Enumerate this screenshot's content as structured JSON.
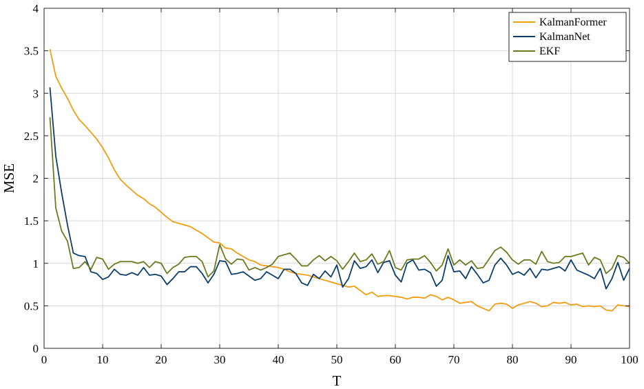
{
  "chart_data": {
    "type": "line",
    "xlabel": "T",
    "ylabel": "MSE",
    "xlim": [
      0,
      100
    ],
    "ylim": [
      0,
      4
    ],
    "xticks": [
      0,
      10,
      20,
      30,
      40,
      50,
      60,
      70,
      80,
      90,
      100
    ],
    "yticks": [
      0,
      0.5,
      1,
      1.5,
      2,
      2.5,
      3,
      3.5,
      4
    ],
    "grid": true,
    "legend_position": "top-right",
    "x": [
      1,
      2,
      3,
      4,
      5,
      6,
      7,
      8,
      9,
      10,
      11,
      12,
      13,
      14,
      15,
      16,
      17,
      18,
      19,
      20,
      21,
      22,
      23,
      24,
      25,
      26,
      27,
      28,
      29,
      30,
      31,
      32,
      33,
      34,
      35,
      36,
      37,
      38,
      39,
      40,
      41,
      42,
      43,
      44,
      45,
      46,
      47,
      48,
      49,
      50,
      51,
      52,
      53,
      54,
      55,
      56,
      57,
      58,
      59,
      60,
      61,
      62,
      63,
      64,
      65,
      66,
      67,
      68,
      69,
      70,
      71,
      72,
      73,
      74,
      75,
      76,
      77,
      78,
      79,
      80,
      81,
      82,
      83,
      84,
      85,
      86,
      87,
      88,
      89,
      90,
      91,
      92,
      93,
      94,
      95,
      96,
      97,
      98,
      99,
      100
    ],
    "series": [
      {
        "name": "KalmanFormer",
        "color": "#f39c12",
        "values": [
          3.52,
          3.2,
          3.06,
          2.94,
          2.8,
          2.69,
          2.62,
          2.54,
          2.46,
          2.36,
          2.24,
          2.1,
          1.99,
          1.92,
          1.86,
          1.8,
          1.76,
          1.7,
          1.66,
          1.6,
          1.54,
          1.49,
          1.47,
          1.45,
          1.43,
          1.39,
          1.35,
          1.3,
          1.25,
          1.24,
          1.18,
          1.17,
          1.12,
          1.08,
          1.04,
          1.02,
          0.98,
          0.97,
          0.96,
          0.95,
          0.93,
          0.9,
          0.88,
          0.87,
          0.86,
          0.84,
          0.82,
          0.8,
          0.78,
          0.76,
          0.74,
          0.72,
          0.73,
          0.68,
          0.63,
          0.66,
          0.61,
          0.62,
          0.62,
          0.61,
          0.6,
          0.58,
          0.6,
          0.6,
          0.59,
          0.63,
          0.61,
          0.57,
          0.6,
          0.57,
          0.53,
          0.54,
          0.55,
          0.5,
          0.47,
          0.44,
          0.52,
          0.53,
          0.52,
          0.47,
          0.51,
          0.53,
          0.55,
          0.53,
          0.49,
          0.5,
          0.54,
          0.53,
          0.54,
          0.51,
          0.52,
          0.49,
          0.5,
          0.49,
          0.5,
          0.45,
          0.44,
          0.51,
          0.5,
          0.49
        ]
      },
      {
        "name": "KalmanNet",
        "color": "#0b3d6b",
        "values": [
          3.07,
          2.26,
          1.83,
          1.45,
          1.12,
          1.09,
          1.08,
          0.9,
          0.88,
          0.81,
          0.84,
          0.93,
          0.87,
          0.86,
          0.89,
          0.86,
          0.95,
          0.86,
          0.87,
          0.85,
          0.75,
          0.82,
          0.9,
          0.9,
          0.96,
          0.96,
          0.88,
          0.77,
          0.87,
          1.03,
          1.02,
          0.87,
          0.88,
          0.9,
          0.85,
          0.8,
          0.82,
          0.9,
          0.86,
          0.82,
          0.93,
          0.93,
          0.88,
          0.77,
          0.74,
          0.87,
          0.82,
          0.91,
          0.84,
          0.98,
          0.72,
          0.82,
          1.03,
          0.94,
          0.96,
          1.04,
          0.89,
          1.01,
          1.03,
          0.86,
          0.78,
          1.0,
          1.04,
          0.92,
          0.93,
          0.89,
          0.73,
          0.8,
          1.09,
          0.9,
          0.91,
          0.82,
          0.96,
          0.87,
          0.77,
          0.8,
          0.98,
          1.06,
          0.98,
          0.87,
          0.9,
          0.86,
          0.94,
          0.83,
          0.93,
          0.92,
          0.94,
          0.96,
          0.91,
          1.04,
          0.92,
          0.89,
          0.86,
          0.82,
          0.94,
          0.7,
          0.82,
          1.01,
          0.8,
          0.94
        ]
      },
      {
        "name": "EKF",
        "color": "#6b7a1e",
        "values": [
          2.72,
          1.65,
          1.38,
          1.26,
          0.94,
          0.95,
          1.02,
          0.93,
          1.07,
          1.05,
          0.93,
          0.99,
          1.02,
          1.02,
          1.02,
          1.0,
          1.02,
          0.95,
          1.02,
          1.0,
          0.88,
          0.95,
          0.99,
          1.07,
          1.08,
          1.08,
          1.02,
          0.84,
          0.91,
          1.22,
          1.05,
          0.99,
          1.05,
          1.04,
          0.92,
          0.95,
          0.92,
          0.95,
          0.99,
          1.08,
          1.1,
          1.12,
          1.05,
          0.97,
          0.97,
          1.04,
          1.09,
          1.03,
          1.08,
          1.03,
          0.93,
          1.02,
          1.12,
          1.02,
          1.04,
          1.11,
          0.99,
          1.02,
          1.15,
          0.95,
          0.92,
          1.04,
          1.05,
          1.05,
          1.09,
          1.01,
          0.91,
          0.98,
          1.17,
          0.98,
          1.04,
          0.98,
          1.03,
          0.94,
          0.95,
          1.05,
          1.15,
          1.19,
          1.13,
          1.04,
          0.99,
          1.04,
          1.04,
          0.99,
          1.14,
          1.02,
          1.0,
          1.01,
          1.08,
          1.08,
          1.1,
          1.12,
          0.98,
          1.07,
          1.04,
          0.88,
          0.94,
          1.09,
          1.07,
          1.0
        ]
      }
    ]
  }
}
